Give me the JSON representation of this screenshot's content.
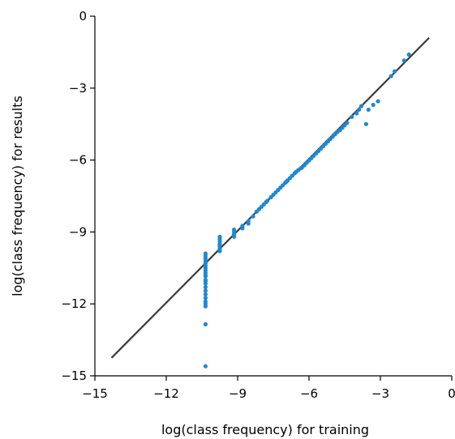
{
  "chart_data": {
    "type": "scatter",
    "title": "",
    "xlabel": "log(class frequency) for training",
    "ylabel": "log(class frequency) for results",
    "xlim": [
      -15,
      0
    ],
    "ylim": [
      -15,
      0
    ],
    "xticks": [
      -15,
      -12,
      -9,
      -6,
      -3,
      0
    ],
    "yticks": [
      -15,
      -12,
      -9,
      -6,
      -3,
      0
    ],
    "xtick_labels": [
      "−15",
      "−12",
      "−9",
      "−6",
      "−3",
      "0"
    ],
    "ytick_labels": [
      "−15",
      "−12",
      "−9",
      "−6",
      "−3",
      "0"
    ],
    "grid": false,
    "reference_line": {
      "x": [
        -14.3,
        -0.95
      ],
      "y": [
        -14.25,
        -0.9
      ]
    },
    "colors": {
      "points": "#1f88d2",
      "line": "#3a3a3a",
      "axes": "#000000"
    },
    "series": [
      {
        "x": [
          -10.35,
          -10.35,
          -10.35,
          -10.35,
          -10.35,
          -10.35,
          -10.35,
          -10.35,
          -10.35,
          -10.35,
          -10.35,
          -10.35,
          -10.35,
          -10.35,
          -10.35,
          -10.35,
          -10.35,
          -10.35,
          -10.35,
          -10.35,
          -10.35,
          -10.35,
          -10.35,
          -9.75,
          -9.75,
          -9.75,
          -9.75,
          -9.75,
          -9.75,
          -9.75,
          -9.75,
          -9.75,
          -9.15,
          -9.15,
          -9.15,
          -9.15,
          -8.8,
          -8.8,
          -8.55,
          -8.55,
          -8.35,
          -8.2,
          -8.1,
          -8.0,
          -7.9,
          -7.8,
          -7.75,
          -7.6,
          -7.5,
          -7.4,
          -7.3,
          -7.2,
          -7.1,
          -7.0,
          -6.95,
          -6.9,
          -6.8,
          -6.7,
          -6.6,
          -6.55,
          -6.45,
          -6.35,
          -6.3,
          -6.2,
          -6.1,
          -6.0,
          -5.9,
          -5.8,
          -5.7,
          -5.6,
          -5.5,
          -5.4,
          -5.3,
          -5.2,
          -5.1,
          -5.0,
          -4.9,
          -4.8,
          -4.7,
          -4.6,
          -4.5,
          -4.4,
          -4.2,
          -4.0,
          -3.9,
          -3.8,
          -3.6,
          -3.5,
          -3.3,
          -3.1,
          -2.55,
          -2.4,
          -2.0,
          -1.8
        ],
        "y": [
          -9.9,
          -10.0,
          -10.1,
          -10.2,
          -10.3,
          -10.4,
          -10.5,
          -10.6,
          -10.7,
          -10.85,
          -11.0,
          -11.15,
          -11.3,
          -11.45,
          -11.6,
          -11.75,
          -11.9,
          -12.0,
          -12.1,
          -10.8,
          -11.05,
          -12.85,
          -14.6,
          -9.2,
          -9.3,
          -9.4,
          -9.5,
          -9.55,
          -9.6,
          -9.7,
          -9.75,
          -9.8,
          -8.9,
          -9.0,
          -9.1,
          -9.2,
          -8.75,
          -8.85,
          -8.55,
          -8.65,
          -8.35,
          -8.15,
          -8.05,
          -7.95,
          -7.85,
          -7.75,
          -7.7,
          -7.55,
          -7.45,
          -7.35,
          -7.25,
          -7.15,
          -7.05,
          -6.95,
          -6.9,
          -6.85,
          -6.75,
          -6.65,
          -6.55,
          -6.5,
          -6.42,
          -6.35,
          -6.32,
          -6.22,
          -6.12,
          -6.02,
          -5.92,
          -5.82,
          -5.72,
          -5.62,
          -5.52,
          -5.42,
          -5.32,
          -5.22,
          -5.12,
          -5.02,
          -4.92,
          -4.82,
          -4.75,
          -4.65,
          -4.55,
          -4.45,
          -4.2,
          -4.05,
          -3.9,
          -3.75,
          -4.5,
          -3.9,
          -3.7,
          -3.55,
          -2.5,
          -2.3,
          -1.85,
          -1.6
        ]
      }
    ]
  }
}
